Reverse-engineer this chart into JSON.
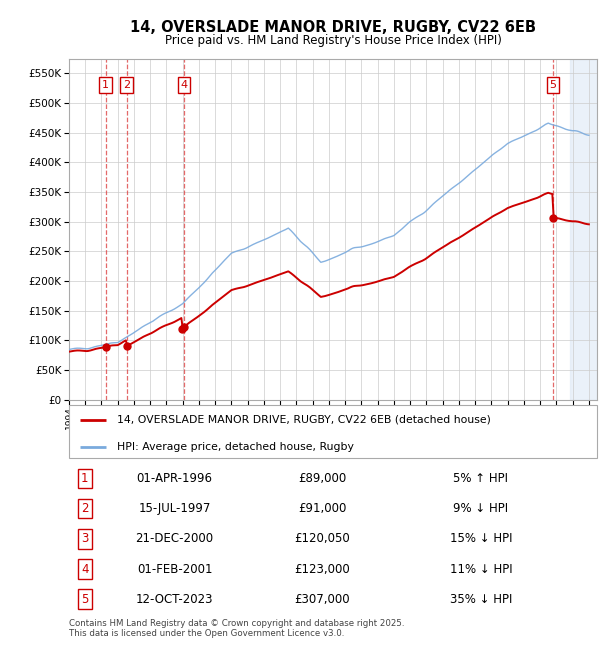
{
  "title": "14, OVERSLADE MANOR DRIVE, RUGBY, CV22 6EB",
  "subtitle": "Price paid vs. HM Land Registry's House Price Index (HPI)",
  "ylim": [
    0,
    575000
  ],
  "yticks": [
    0,
    50000,
    100000,
    150000,
    200000,
    250000,
    300000,
    350000,
    400000,
    450000,
    500000,
    550000
  ],
  "xlim_start": 1994.0,
  "xlim_end": 2026.5,
  "sale_color": "#cc0000",
  "hpi_color": "#7aaadd",
  "sale_dates_num": [
    1996.25,
    1997.54,
    2000.97,
    2001.08,
    2023.78
  ],
  "sale_prices": [
    89000,
    91000,
    120050,
    123000,
    307000
  ],
  "sale_labels": [
    "1",
    "2",
    "3",
    "4",
    "5"
  ],
  "sale_labels_shown_indices": [
    0,
    1,
    3,
    4
  ],
  "legend_sale": "14, OVERSLADE MANOR DRIVE, RUGBY, CV22 6EB (detached house)",
  "legend_hpi": "HPI: Average price, detached house, Rugby",
  "table_rows": [
    [
      "1",
      "01-APR-1996",
      "£89,000",
      "5% ↑ HPI"
    ],
    [
      "2",
      "15-JUL-1997",
      "£91,000",
      "9% ↓ HPI"
    ],
    [
      "3",
      "21-DEC-2000",
      "£120,050",
      "15% ↓ HPI"
    ],
    [
      "4",
      "01-FEB-2001",
      "£123,000",
      "11% ↓ HPI"
    ],
    [
      "5",
      "12-OCT-2023",
      "£307,000",
      "35% ↓ HPI"
    ]
  ],
  "footer": "Contains HM Land Registry data © Crown copyright and database right 2025.\nThis data is licensed under the Open Government Licence v3.0.",
  "shade_start": 2024.83
}
